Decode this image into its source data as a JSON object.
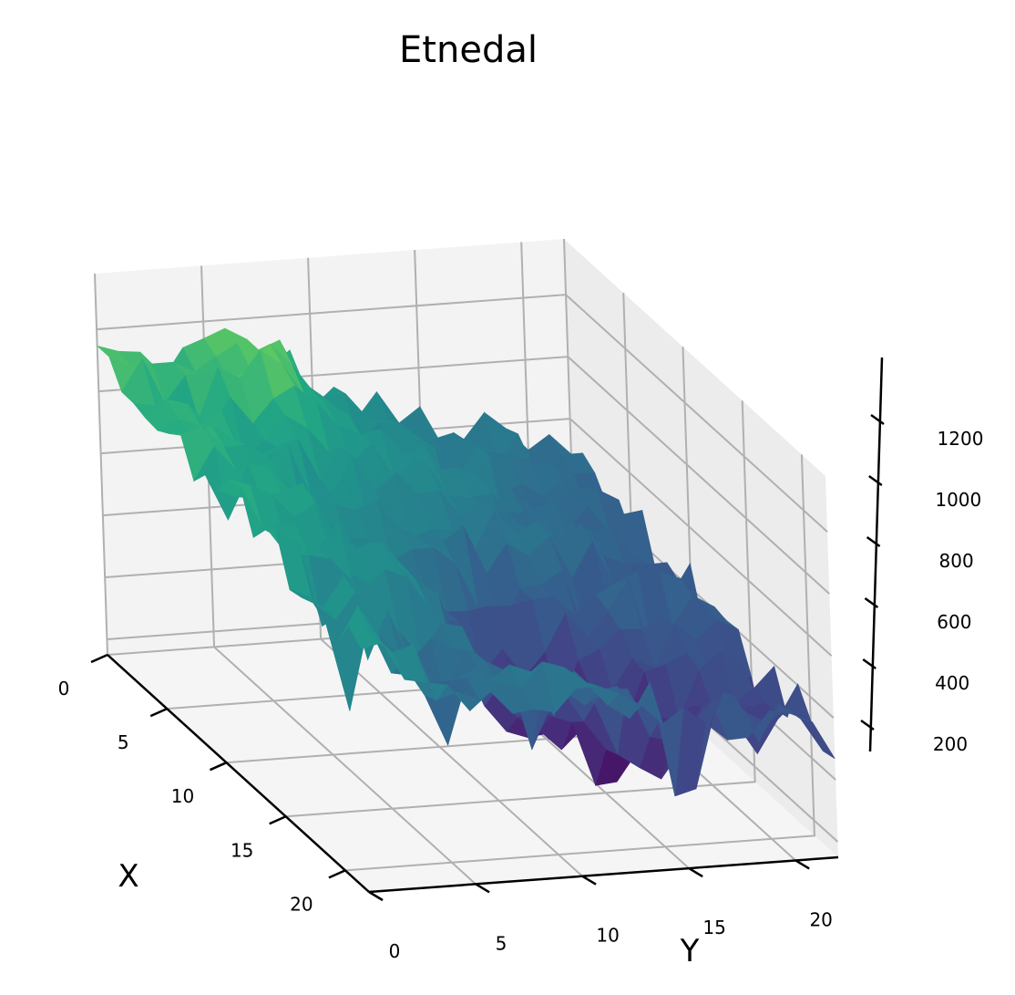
{
  "chart_data": {
    "type": "surface3d",
    "title": "Etnedal",
    "xlabel": "X",
    "ylabel": "Y",
    "zlabel": "",
    "x_ticks": [
      "0",
      "5",
      "10",
      "15",
      "20"
    ],
    "y_ticks": [
      "0",
      "5",
      "10",
      "15",
      "20"
    ],
    "z_ticks": [
      "200",
      "400",
      "600",
      "800",
      "1000",
      "1200"
    ],
    "xlim": [
      0,
      22
    ],
    "ylim": [
      0,
      22
    ],
    "zlim": [
      150,
      1380
    ],
    "grid": true,
    "colormap": "viridis",
    "grid_size": [
      23,
      23
    ],
    "description_of_values": "z(x,y) elevation surface; high (≈1000–1350) along low-Y/low-X ridge, descending to ≈600–700 at high Y, with deep pits (≈200–400) near x≈10–18, y≈8–16"
  },
  "colors": {
    "pane_left": "#f3f3f3",
    "pane_right": "#ececec",
    "pane_floor": "#f5f5f5",
    "grid": "#b0b0b0",
    "axis": "#000000"
  }
}
